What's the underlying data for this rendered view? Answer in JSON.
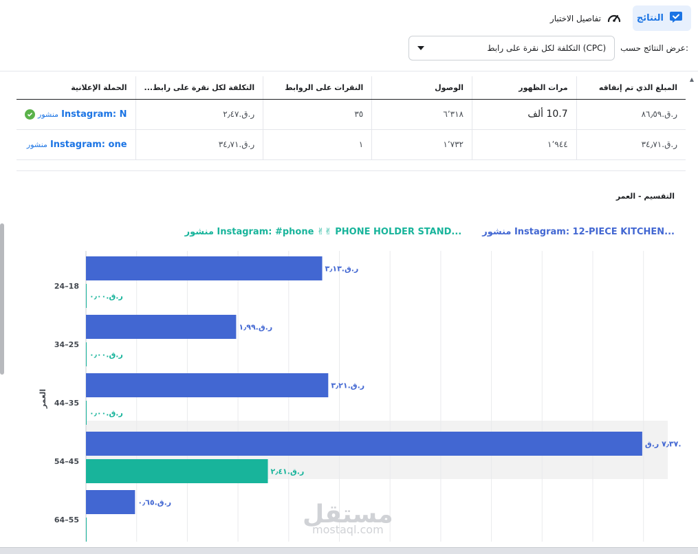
{
  "tabs": {
    "results_label": "النتائج",
    "test_details_label": "تفاصيل الاختبار"
  },
  "filter": {
    "caption": "عرض النتائج حسب:",
    "selected": "التكلفة لكل نقرة على رابط (CPC)"
  },
  "table": {
    "headers": [
      "المبلغ الذي تم إنفاقه",
      "مرات الظهور",
      "الوصول",
      "النقرات على الروابط",
      "التكلفة لكل نقرة على رابط...",
      "الحملة الإعلانية"
    ],
    "rows": [
      {
        "spent": "ر.ق.‏٨٦٫٥٩",
        "impressions": "10.7 ألف",
        "reach": "٦٬٣١٨",
        "clicks": "٣٥",
        "cpc": "ر.ق.‏٢٫٤٧",
        "campaign_prefix": "منشور",
        "campaign_name": "Instagram: N"
      },
      {
        "spent": "ر.ق.‏٣٤٫٧١",
        "impressions": "١٬٩٤٤",
        "reach": "١٬٧٣٢",
        "clicks": "١",
        "cpc": "ر.ق.‏٣٤٫٧١",
        "campaign_prefix": "منشور",
        "campaign_name": "Instagram: one"
      }
    ]
  },
  "breakdown_title": "التقسيم - العمر",
  "colors": {
    "blue": "#4267d2",
    "teal": "#18b49b",
    "accent": "#1b74e4"
  },
  "chart_data": {
    "type": "bar",
    "orientation": "horizontal",
    "ylabel": "العمر",
    "categories": [
      "18–24",
      "25–34",
      "35–44",
      "45–54",
      "55–64"
    ],
    "category_labels": [
      "24–18",
      "34–25",
      "44–35",
      "54–45",
      "64–55"
    ],
    "xlim": [
      0,
      7.5
    ],
    "grid": true,
    "legend_position": "top-right",
    "series": [
      {
        "name": "منشور Instagram: 12-PIECE KITCHEN...",
        "color": "#4267d2",
        "values": [
          3.13,
          1.99,
          3.21,
          7.37,
          0.65
        ],
        "labels": [
          "ر.ق.‏٣٫١٣",
          "ر.ق.‏١٫٩٩",
          "ر.ق.‏٣٫٢١",
          "٧٫٣٧ ر.ق.",
          "ر.ق.‏٠٫٦٥"
        ]
      },
      {
        "name": "منشور Instagram: #phone ✌✌ PHONE HOLDER STAND...",
        "color": "#18b49b",
        "values": [
          0,
          0,
          0,
          2.41,
          0
        ],
        "labels": [
          "ر.ق.‏٠٫٠٠",
          "ر.ق.‏٠٫٠٠",
          "ر.ق.‏٠٫٠٠",
          "ر.ق.‏٢٫٤١",
          ""
        ]
      }
    ]
  },
  "watermark": {
    "ar": "مستقل",
    "en": "mostaql.com"
  }
}
